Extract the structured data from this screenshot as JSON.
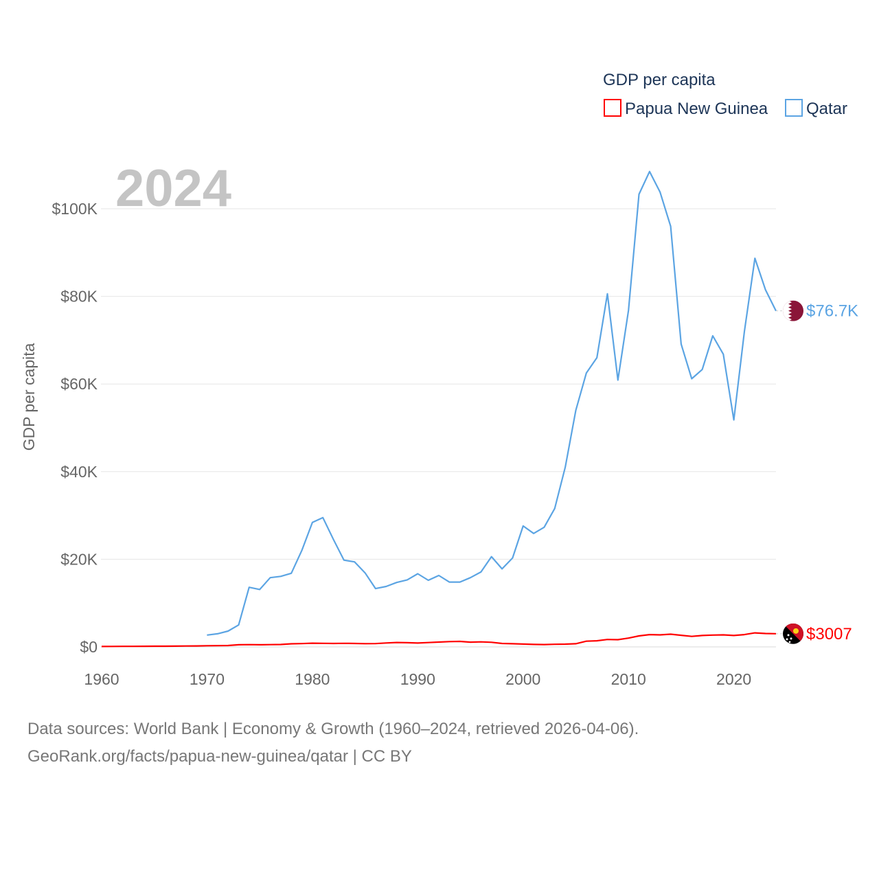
{
  "chart_data": {
    "type": "line",
    "title": "GDP per capita",
    "year_display": "2024",
    "ylabel": "GDP per capita",
    "xlabel": "",
    "xlim": [
      1960,
      2024
    ],
    "ylim": [
      0,
      110000
    ],
    "x_ticks": [
      1960,
      1970,
      1980,
      1990,
      2000,
      2010,
      2020
    ],
    "x_tick_labels": [
      "1960",
      "1970",
      "1980",
      "1990",
      "2000",
      "2010",
      "2020"
    ],
    "y_ticks": [
      0,
      20000,
      40000,
      60000,
      80000,
      100000
    ],
    "y_tick_labels": [
      "$0",
      "$20K",
      "$40K",
      "$60K",
      "$80K",
      "$100K"
    ],
    "legend": {
      "title": "GDP per capita",
      "position": "top-right"
    },
    "series": [
      {
        "name": "Papua New Guinea",
        "color": "#ff0000",
        "end_label": "$3007",
        "flag_icon": "papua-new-guinea-flag-icon",
        "x": [
          1960,
          1961,
          1962,
          1963,
          1964,
          1965,
          1966,
          1967,
          1968,
          1969,
          1970,
          1971,
          1972,
          1973,
          1974,
          1975,
          1976,
          1977,
          1978,
          1979,
          1980,
          1981,
          1982,
          1983,
          1984,
          1985,
          1986,
          1987,
          1988,
          1989,
          1990,
          1991,
          1992,
          1993,
          1994,
          1995,
          1996,
          1997,
          1998,
          1999,
          2000,
          2001,
          2002,
          2003,
          2004,
          2005,
          2006,
          2007,
          2008,
          2009,
          2010,
          2011,
          2012,
          2013,
          2014,
          2015,
          2016,
          2017,
          2018,
          2019,
          2020,
          2021,
          2022,
          2023,
          2024
        ],
        "values": [
          100,
          110,
          120,
          130,
          140,
          150,
          160,
          180,
          200,
          220,
          260,
          280,
          320,
          480,
          520,
          480,
          520,
          550,
          700,
          760,
          840,
          820,
          780,
          820,
          780,
          740,
          760,
          900,
          1000,
          960,
          870,
          980,
          1100,
          1200,
          1250,
          1080,
          1150,
          1050,
          780,
          720,
          650,
          560,
          540,
          590,
          620,
          720,
          1300,
          1400,
          1700,
          1650,
          2000,
          2500,
          2800,
          2750,
          2900,
          2650,
          2400,
          2600,
          2700,
          2750,
          2600,
          2800,
          3200,
          3050,
          3007
        ]
      },
      {
        "name": "Qatar",
        "color": "#5ba4e3",
        "end_label": "$76.7K",
        "flag_icon": "qatar-flag-icon",
        "x": [
          1970,
          1971,
          1972,
          1973,
          1974,
          1975,
          1976,
          1977,
          1978,
          1979,
          1980,
          1981,
          1982,
          1983,
          1984,
          1985,
          1986,
          1987,
          1988,
          1989,
          1990,
          1991,
          1992,
          1993,
          1994,
          1995,
          1996,
          1997,
          1998,
          1999,
          2000,
          2001,
          2002,
          2003,
          2004,
          2005,
          2006,
          2007,
          2008,
          2009,
          2010,
          2011,
          2012,
          2013,
          2014,
          2015,
          2016,
          2017,
          2018,
          2019,
          2020,
          2021,
          2022,
          2023,
          2024
        ],
        "values": [
          2700,
          3000,
          3600,
          5000,
          13600,
          13100,
          15800,
          16100,
          16800,
          22000,
          28400,
          29500,
          24500,
          19800,
          19400,
          16900,
          13300,
          13800,
          14700,
          15300,
          16700,
          15200,
          16300,
          14800,
          14800,
          15800,
          17100,
          20600,
          17800,
          20300,
          27600,
          25900,
          27300,
          31600,
          41000,
          54000,
          62500,
          66000,
          80600,
          60900,
          76800,
          103300,
          108500,
          103800,
          96000,
          69100,
          61200,
          63300,
          71000,
          66800,
          51800,
          72000,
          88700,
          81500,
          76700
        ]
      }
    ]
  },
  "footer": {
    "line1": "Data sources: World Bank | Economy & Growth (1960–2024, retrieved 2026-04-06).",
    "line2": "GeoRank.org/facts/papua-new-guinea/qatar | CC BY"
  }
}
